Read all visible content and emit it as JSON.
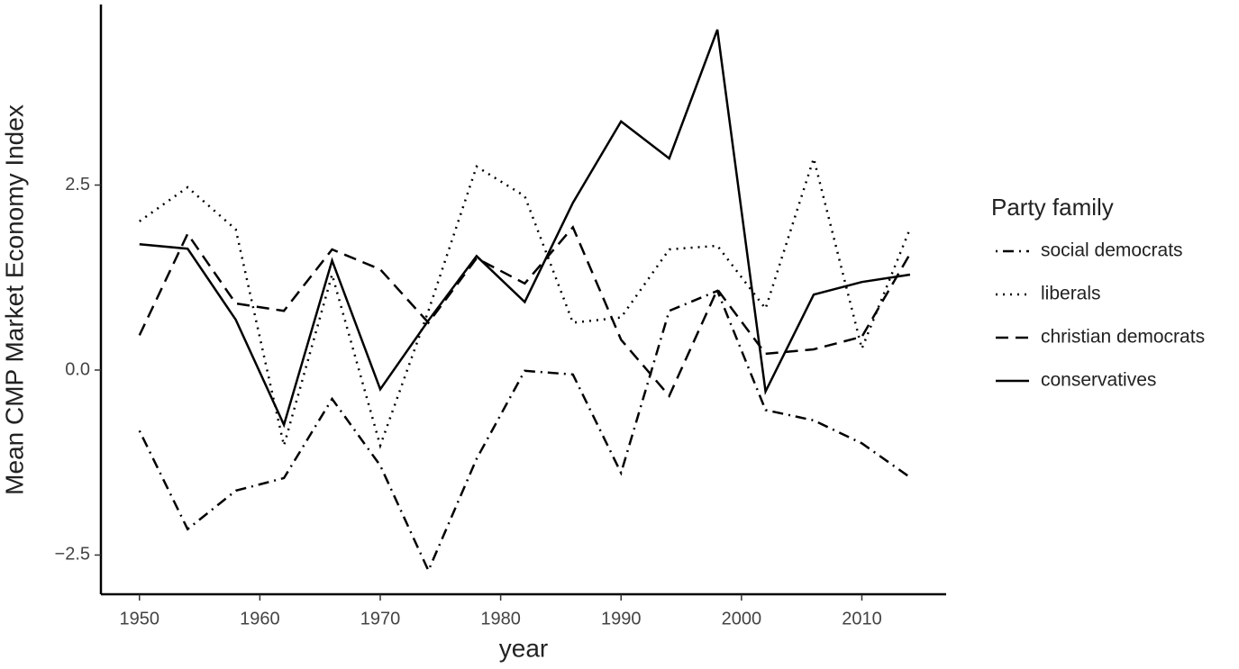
{
  "chart_data": {
    "type": "line",
    "x_label": "year",
    "y_label": "Mean CMP Market Economy Index",
    "legend_title": "Party family",
    "legend_position": "right",
    "grid": false,
    "x": [
      1950,
      1954,
      1958,
      1962,
      1966,
      1970,
      1974,
      1978,
      1982,
      1986,
      1990,
      1994,
      1998,
      2002,
      2006,
      2010,
      2014
    ],
    "xlim": [
      1946.8,
      2017.0
    ],
    "xticks": [
      1950,
      1960,
      1970,
      1980,
      1990,
      2000,
      2010
    ],
    "ylim": [
      -3.03,
      4.94
    ],
    "yticks": [
      {
        "value": -2.5,
        "label": "−2.5"
      },
      {
        "value": 0,
        "label": "0.0"
      },
      2.5
    ],
    "series": [
      {
        "name": "social democrats",
        "color": "#000000",
        "linestyle": "dotdash",
        "values": [
          -0.82,
          -2.15,
          -1.63,
          -1.46,
          -0.39,
          -1.29,
          -2.71,
          -1.2,
          -0.01,
          -0.06,
          -1.39,
          0.8,
          1.07,
          -0.54,
          -0.68,
          -0.99,
          -1.45
        ]
      },
      {
        "name": "liberals",
        "color": "#000000",
        "linestyle": "dotted",
        "values": [
          2.01,
          2.47,
          1.9,
          -1.02,
          1.29,
          -1.02,
          0.8,
          2.75,
          2.35,
          0.64,
          0.71,
          1.63,
          1.68,
          0.83,
          2.86,
          0.29,
          1.91
        ]
      },
      {
        "name": "christian democrats",
        "color": "#000000",
        "linestyle": "dashed",
        "values": [
          0.47,
          1.84,
          0.9,
          0.8,
          1.63,
          1.36,
          0.64,
          1.51,
          1.17,
          1.93,
          0.41,
          -0.35,
          1.09,
          0.22,
          0.28,
          0.45,
          1.57
        ]
      },
      {
        "name": "conservatives",
        "color": "#000000",
        "linestyle": "solid",
        "values": [
          1.7,
          1.64,
          0.68,
          -0.74,
          1.48,
          -0.26,
          0.67,
          1.54,
          0.92,
          2.26,
          3.36,
          2.86,
          4.6,
          -0.29,
          1.02,
          1.19,
          1.29
        ]
      }
    ]
  }
}
